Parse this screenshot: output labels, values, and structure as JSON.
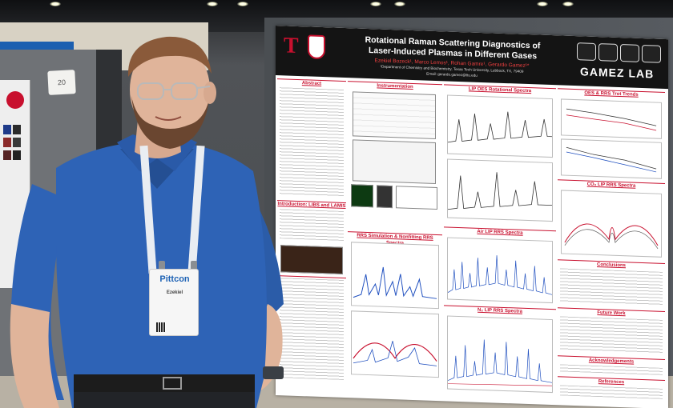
{
  "scene": {
    "description_colors": {
      "shirt": "#2e63b6",
      "skin": "#e0b49a",
      "hair": "#8a5a3a",
      "poster_header": "#141414",
      "accent_red": "#c8102e"
    }
  },
  "poster": {
    "title_line1": "Rotational Raman Scattering Diagnostics of",
    "title_line2": "Laser-Induced Plasmas in Different Gases",
    "authors": "Ezekiel Bozeck¹, Marco Lemos¹, Rohan Gamre¹, Gerardo Gamez¹*",
    "affiliation": "¹Department of Chemistry and Biochemistry, Texas Tech University, Lubbock, TX, 79409",
    "email": "Email: gerardo.gamez@ttu.edu",
    "lab_name": "GAMEZ LAB",
    "sections": {
      "abstract": "Abstract",
      "instrumentation": "Instrumentation",
      "lip_oes": "LIP OES Rotational Spectra",
      "oes_rrs_trends": "OES & RRS Trot Trends",
      "co2_rrs": "CO₂ LIP RRS Spectra",
      "introduction": "Introduction: LIBS and LAMIS",
      "air_rrs": "Air LIP RRS Spectra",
      "rrs_sim": "RRS Simulation & Nonfitting RRS Spectra",
      "conclusions": "Conclusions",
      "n2_rrs": "N₂ LIP RRS Spectra",
      "future_work": "Future Work",
      "acknowledgements": "Acknowledgements",
      "references": "References"
    }
  },
  "badge": {
    "brand": "Pittcon",
    "name": "Ezekiel"
  },
  "tag_card": {
    "number": "20"
  }
}
